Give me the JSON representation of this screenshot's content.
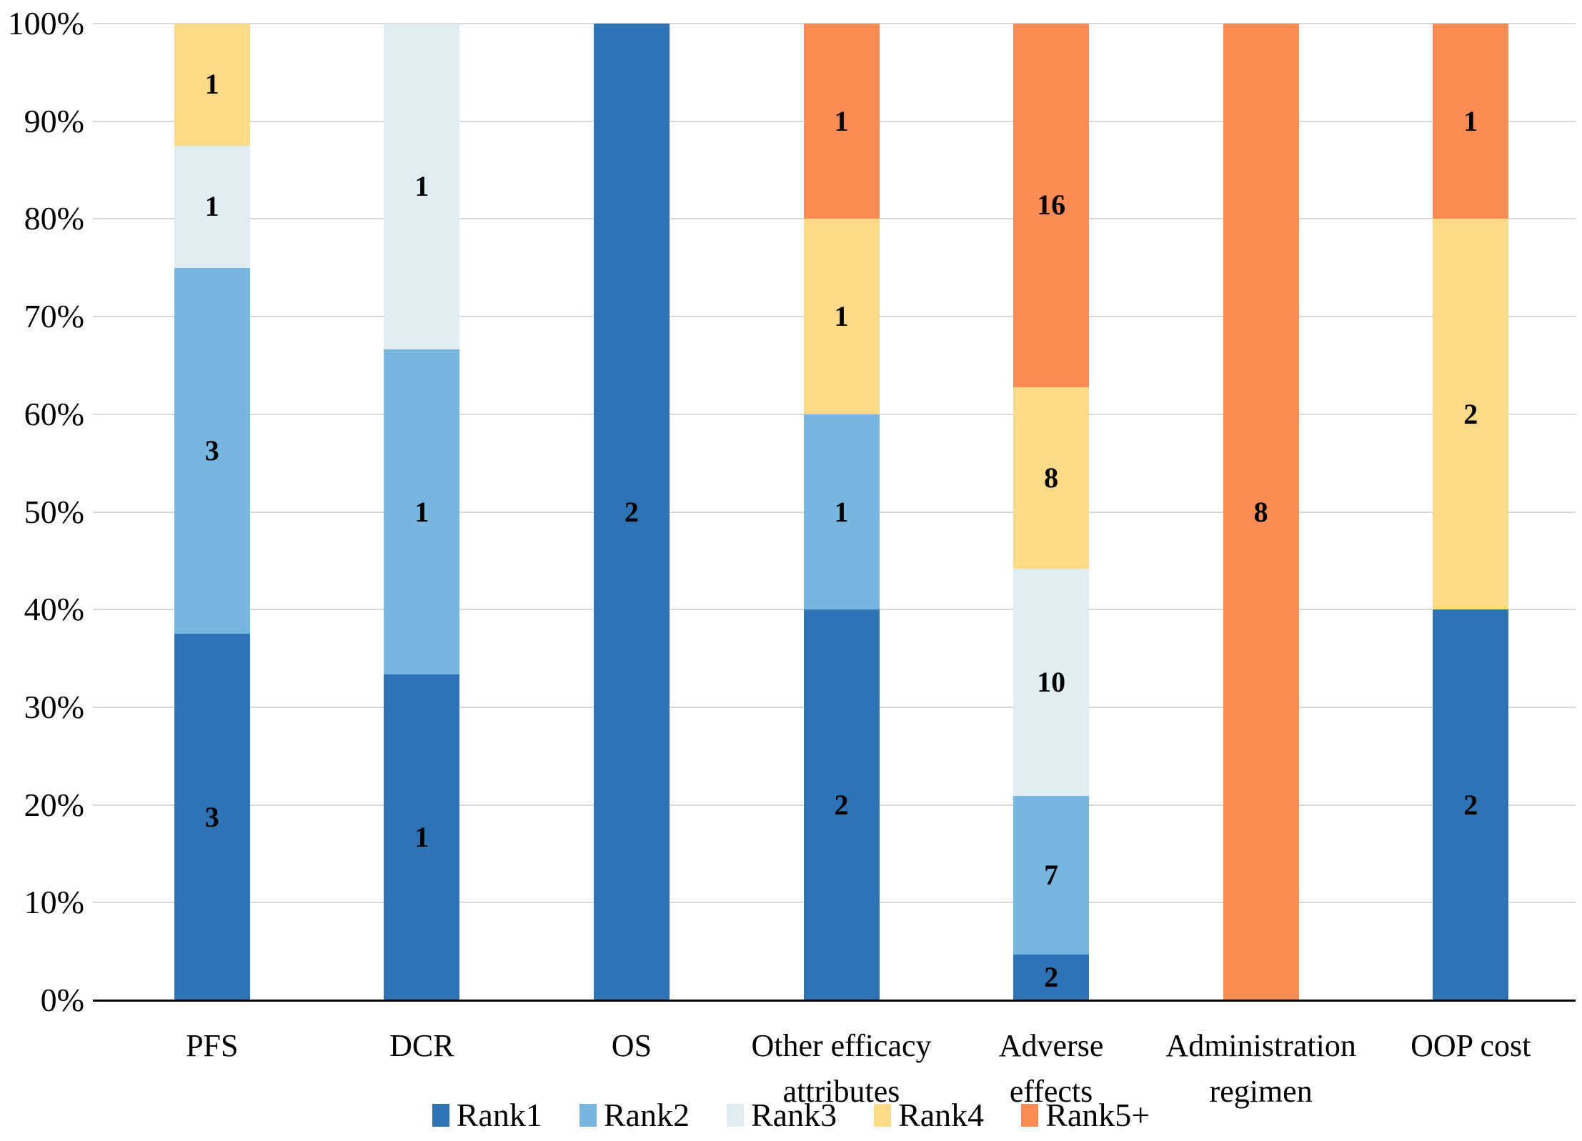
{
  "chart_data": {
    "type": "bar",
    "variant": "100-percent-stacked-column",
    "title": "",
    "xlabel": "",
    "ylabel": "",
    "categories": [
      "PFS",
      "DCR",
      "OS",
      "Other efficacy attributes",
      "Adverse effects",
      "Administration regimen",
      "OOP cost"
    ],
    "category_label_lines": [
      [
        "PFS"
      ],
      [
        "DCR"
      ],
      [
        "OS"
      ],
      [
        "Other efficacy",
        "attributes"
      ],
      [
        "Adverse",
        "effects"
      ],
      [
        "Administration",
        "regimen"
      ],
      [
        "OOP cost"
      ]
    ],
    "series": [
      {
        "name": "Rank1",
        "color": "#2E74B5",
        "values": [
          3,
          1,
          2,
          2,
          2,
          0,
          2
        ]
      },
      {
        "name": "Rank2",
        "color": "#77B6DE",
        "values": [
          3,
          1,
          0,
          1,
          7,
          0,
          0
        ]
      },
      {
        "name": "Rank3",
        "color": "#E0EDF3",
        "values": [
          1,
          1,
          0,
          0,
          10,
          0,
          0
        ]
      },
      {
        "name": "Rank4",
        "color": "#FDDA8A",
        "values": [
          1,
          0,
          0,
          1,
          8,
          0,
          2
        ]
      },
      {
        "name": "Rank5+",
        "color": "#FB8C55",
        "values": [
          0,
          0,
          0,
          1,
          16,
          8,
          1
        ]
      }
    ],
    "data_labels_visible": true,
    "y_axis": {
      "min": 0,
      "max": 100,
      "tick_labels": [
        "0%",
        "10%",
        "20%",
        "30%",
        "40%",
        "50%",
        "60%",
        "70%",
        "80%",
        "90%",
        "100%"
      ],
      "grid": true
    },
    "legend": {
      "position": "bottom",
      "entries": [
        "Rank1",
        "Rank2",
        "Rank3",
        "Rank4",
        "Rank5+"
      ]
    },
    "colors": {
      "gridline": "#d9d9d9",
      "axis_line": "#000000",
      "text": "#000000",
      "background": "#ffffff"
    }
  }
}
